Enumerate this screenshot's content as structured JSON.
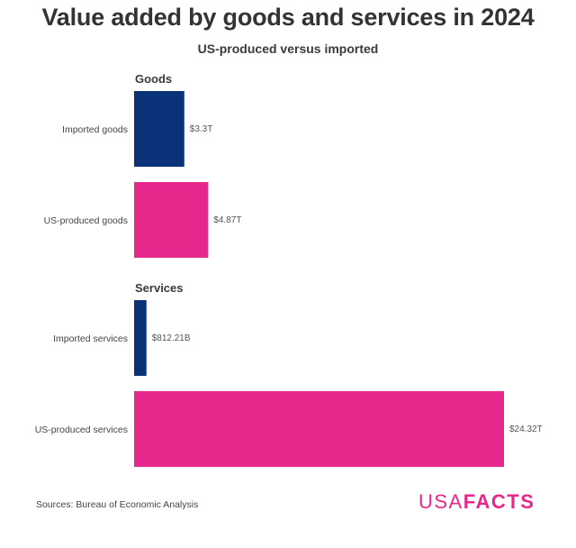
{
  "header": {
    "title": "Value added by goods and services in 2024",
    "subtitle": "US-produced versus imported"
  },
  "footer": {
    "source": "Sources: Bureau of Economic Analysis",
    "logo_part1": "USA",
    "logo_part2": "FACTS"
  },
  "colors": {
    "imported": "#0a3278",
    "us_produced": "#e6288c",
    "logo": "#e6288c"
  },
  "chart_data": {
    "type": "bar",
    "orientation": "horizontal",
    "title": "Value added by goods and services in 2024",
    "subtitle": "US-produced versus imported",
    "unit": "trillion USD",
    "xlabel": "",
    "ylabel": "",
    "grid": false,
    "legend": "none",
    "xlim": [
      0,
      24.32
    ],
    "groups": [
      {
        "name": "Goods",
        "bars": [
          {
            "category": "Imported goods",
            "value": 3.3,
            "label": "$3.3T",
            "series": "imported"
          },
          {
            "category": "US-produced goods",
            "value": 4.87,
            "label": "$4.87T",
            "series": "us_produced"
          }
        ]
      },
      {
        "name": "Services",
        "bars": [
          {
            "category": "Imported services",
            "value": 0.81221,
            "label": "$812.21B",
            "series": "imported"
          },
          {
            "category": "US-produced services",
            "value": 24.32,
            "label": "$24.32T",
            "series": "us_produced"
          }
        ]
      }
    ]
  }
}
